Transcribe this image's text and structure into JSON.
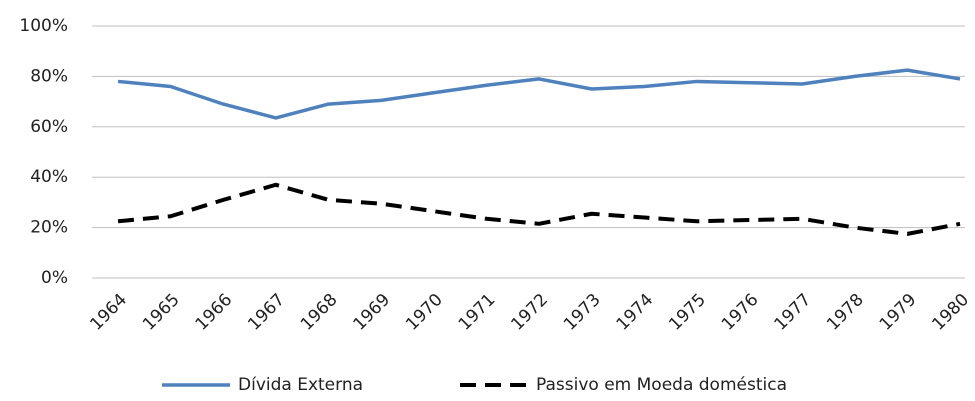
{
  "chart_data": {
    "type": "line",
    "categories": [
      "1964",
      "1965",
      "1966",
      "1967",
      "1968",
      "1969",
      "1970",
      "1971",
      "1972",
      "1973",
      "1974",
      "1975",
      "1976",
      "1977",
      "1978",
      "1979",
      "1980"
    ],
    "series": [
      {
        "name": "Dívida Externa",
        "color": "#4f81bd",
        "dash": false,
        "values": [
          78,
          76,
          69,
          63.5,
          69,
          70.5,
          73.5,
          76.5,
          79,
          75,
          76,
          78,
          77.5,
          77,
          80,
          82.5,
          79
        ]
      },
      {
        "name": "Passivo em Moeda doméstica",
        "color": "#000000",
        "dash": true,
        "values": [
          22.5,
          24.5,
          31,
          37,
          31,
          29.5,
          26.5,
          23.5,
          21.5,
          25.5,
          24,
          22.5,
          23,
          23.5,
          20,
          17.5,
          21.5
        ]
      }
    ],
    "ylim": [
      0,
      100
    ],
    "yticks": [
      {
        "value": 0,
        "label": "0%"
      },
      {
        "value": 20,
        "label": "20%"
      },
      {
        "value": 40,
        "label": "40%"
      },
      {
        "value": 60,
        "label": "60%"
      },
      {
        "value": 80,
        "label": "80%"
      },
      {
        "value": 100,
        "label": "100%"
      }
    ],
    "grid": true,
    "legend": "bottom"
  }
}
